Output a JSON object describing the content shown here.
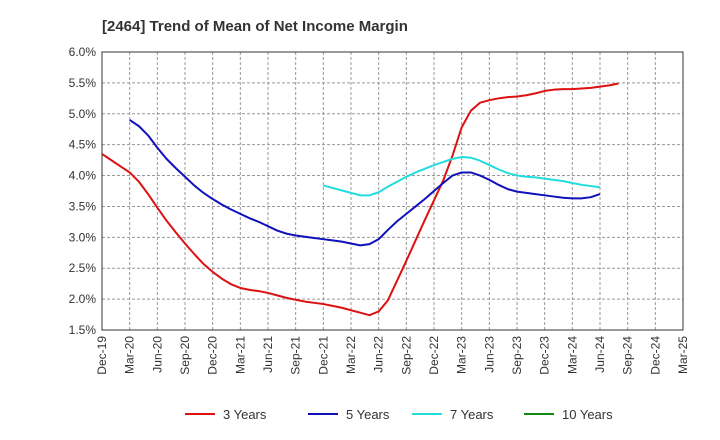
{
  "chart_data": {
    "type": "line",
    "title": "[2464]  Trend of Mean of Net Income Margin",
    "xlabel": "",
    "ylabel": "",
    "x_ticks": [
      "Dec-19",
      "Mar-20",
      "Jun-20",
      "Sep-20",
      "Dec-20",
      "Mar-21",
      "Jun-21",
      "Sep-21",
      "Dec-21",
      "Mar-22",
      "Jun-22",
      "Sep-22",
      "Dec-22",
      "Mar-23",
      "Jun-23",
      "Sep-23",
      "Dec-23",
      "Mar-24",
      "Jun-24",
      "Sep-24",
      "Dec-24",
      "Mar-25"
    ],
    "y_ticks": [
      "1.5%",
      "2.0%",
      "2.5%",
      "3.0%",
      "3.5%",
      "4.0%",
      "4.5%",
      "5.0%",
      "5.5%",
      "6.0%"
    ],
    "ylim": [
      1.5,
      6.0
    ],
    "grid": true,
    "legend_position": "bottom",
    "series": [
      {
        "name": "3 Years",
        "color": "#dd1111",
        "start_index": 0,
        "values": [
          4.35,
          4.25,
          4.15,
          4.05,
          3.9,
          3.7,
          3.48,
          3.27,
          3.08,
          2.9,
          2.73,
          2.57,
          2.44,
          2.33,
          2.24,
          2.18,
          2.15,
          2.13,
          2.1,
          2.06,
          2.02,
          1.99,
          1.96,
          1.94,
          1.92,
          1.89,
          1.86,
          1.82,
          1.78,
          1.74,
          1.8,
          1.98,
          2.3,
          2.62,
          2.95,
          3.28,
          3.6,
          3.92,
          4.32,
          4.78,
          5.05,
          5.18,
          5.22,
          5.25,
          5.27,
          5.28,
          5.3,
          5.33,
          5.37,
          5.39,
          5.4,
          5.4,
          5.41,
          5.42,
          5.44,
          5.46,
          5.49
        ]
      },
      {
        "name": "5 Years",
        "color": "#1111bb",
        "start_index": 3,
        "values": [
          4.9,
          4.8,
          4.65,
          4.45,
          4.27,
          4.12,
          3.98,
          3.84,
          3.72,
          3.62,
          3.53,
          3.45,
          3.38,
          3.31,
          3.25,
          3.18,
          3.11,
          3.06,
          3.03,
          3.01,
          2.99,
          2.97,
          2.95,
          2.93,
          2.9,
          2.87,
          2.89,
          2.97,
          3.12,
          3.26,
          3.38,
          3.5,
          3.62,
          3.75,
          3.88,
          4.0,
          4.05,
          4.05,
          4.0,
          3.93,
          3.85,
          3.78,
          3.74,
          3.72,
          3.7,
          3.68,
          3.66,
          3.64,
          3.63,
          3.63,
          3.65,
          3.7
        ]
      },
      {
        "name": "7 Years",
        "color": "#22dddd",
        "start_index": 24,
        "values": [
          3.84,
          3.8,
          3.76,
          3.72,
          3.68,
          3.68,
          3.73,
          3.82,
          3.9,
          3.98,
          4.05,
          4.11,
          4.17,
          4.22,
          4.27,
          4.3,
          4.29,
          4.24,
          4.17,
          4.1,
          4.04,
          4.0,
          3.98,
          3.97,
          3.95,
          3.93,
          3.91,
          3.88,
          3.85,
          3.83,
          3.81
        ]
      },
      {
        "name": "10 Years",
        "color": "#118811",
        "start_index": 0,
        "values": []
      }
    ]
  }
}
